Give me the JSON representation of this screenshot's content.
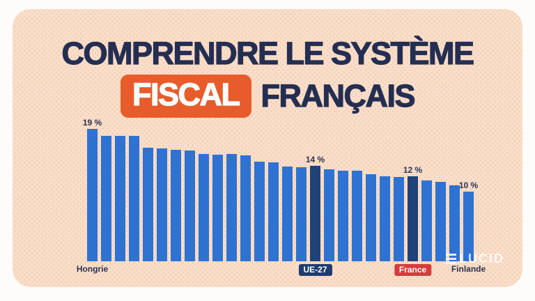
{
  "title": {
    "line1": "COMPRENDRE LE SYSTÈME",
    "line2_badge": "FISCAL",
    "line2_rest": "FRANÇAIS"
  },
  "logo": {
    "icon": "triple-bar-icon",
    "text": "LUCID"
  },
  "colors": {
    "card_background": "#f9deca",
    "card_dot_texture": "#f2c7a6",
    "title_navy": "#242e52",
    "badge_orange": "#e85c2b",
    "bar_blue": "#2e72d2",
    "bar_dark_navy": "#1f4277",
    "ue27_badge_navy": "#1e3c6e",
    "france_badge_red": "#d63c3c",
    "label_navy": "#2b3350"
  },
  "chart_data": {
    "type": "bar",
    "unit": "%",
    "ylim": [
      0,
      20
    ],
    "grid": false,
    "legend": "none",
    "note": "28 bars sorted descending: EU-27 member countries plus the EU-27 average; only four bars are labeled",
    "labeled_points": [
      {
        "label": "Hongrie",
        "value_text": "19 %"
      },
      {
        "label": "UE-27",
        "value_text": "14 %"
      },
      {
        "label": "France",
        "value_text": "12 %"
      },
      {
        "label": "Finlande",
        "value_text": "10 %"
      }
    ],
    "bars": [
      {
        "country": "Hongrie",
        "country_style": "plain",
        "value": 19,
        "value_label": "19 %",
        "highlight": false
      },
      {
        "value": 18,
        "highlight": false
      },
      {
        "value": 18,
        "highlight": false
      },
      {
        "value": 18,
        "highlight": false
      },
      {
        "value": 16.3,
        "highlight": false
      },
      {
        "value": 16.2,
        "highlight": false
      },
      {
        "value": 16,
        "highlight": false
      },
      {
        "value": 15.9,
        "highlight": false
      },
      {
        "value": 15.4,
        "highlight": false
      },
      {
        "value": 15.3,
        "highlight": false
      },
      {
        "value": 15.4,
        "highlight": false
      },
      {
        "value": 15.2,
        "highlight": false
      },
      {
        "value": 14.3,
        "highlight": false
      },
      {
        "value": 14.2,
        "highlight": false
      },
      {
        "value": 13.6,
        "highlight": false
      },
      {
        "value": 13.5,
        "highlight": false
      },
      {
        "country": "UE-27",
        "country_style": "navy-badge",
        "value": 13.7,
        "value_label": "14 %",
        "highlight": true
      },
      {
        "value": 13.2,
        "highlight": false
      },
      {
        "value": 13,
        "highlight": false
      },
      {
        "value": 13,
        "highlight": false
      },
      {
        "value": 12.5,
        "highlight": false
      },
      {
        "value": 12.2,
        "highlight": false
      },
      {
        "value": 12.1,
        "highlight": false
      },
      {
        "country": "France",
        "country_style": "red-badge",
        "value": 12.2,
        "value_label": "12 %",
        "highlight": true
      },
      {
        "value": 11.6,
        "highlight": false
      },
      {
        "value": 11.4,
        "highlight": false
      },
      {
        "value": 10.9,
        "highlight": false
      },
      {
        "country": "Finlande",
        "country_style": "plain",
        "value": 10,
        "value_label": "10 %",
        "highlight": false
      }
    ]
  }
}
